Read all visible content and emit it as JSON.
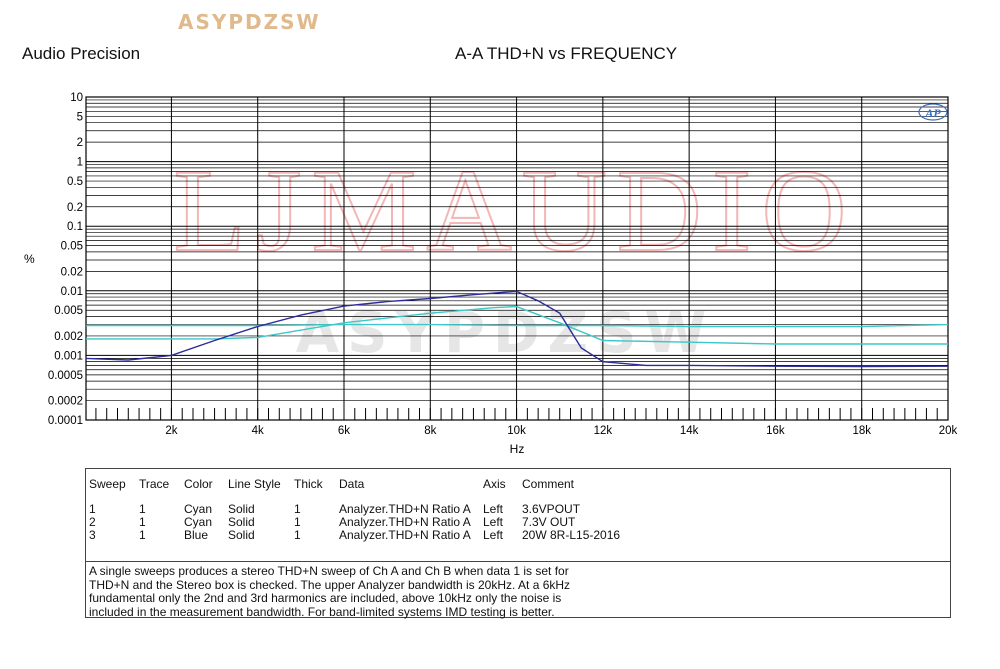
{
  "header": {
    "logo": "ASYPDZSW",
    "brand": "Audio Precision",
    "title": "A-A THD+N vs FREQUENCY"
  },
  "watermark": {
    "main": "LJMAUDIO",
    "secondary": "ASYPDZSW"
  },
  "ap_badge": "AP",
  "colors": {
    "cyan": "#3cc8c8",
    "blue": "#2c2c9c",
    "grid": "#000000",
    "watermark": "#f3b7b7"
  },
  "chart_data": {
    "type": "line",
    "title": "A-A THD+N vs FREQUENCY",
    "xlabel": "Hz",
    "ylabel": "%",
    "xlim": [
      20,
      20000
    ],
    "ylim": [
      0.0001,
      10
    ],
    "yscale": "log",
    "grid": true,
    "x_ticks": [
      "2k",
      "4k",
      "6k",
      "8k",
      "10k",
      "12k",
      "14k",
      "16k",
      "18k",
      "20k"
    ],
    "y_ticks": [
      "10",
      "5",
      "2",
      "1",
      "0.5",
      "0.2",
      "0.1",
      "0.05",
      "0.02",
      "0.01",
      "0.005",
      "0.002",
      "0.001",
      "0.0005",
      "0.0002",
      "0.0001"
    ],
    "series": [
      {
        "name": "3.6VPOUT",
        "color": "#3cc8c8",
        "x": [
          20,
          2000,
          4000,
          6000,
          8000,
          10000,
          10500,
          12000,
          14000,
          16000,
          18000,
          20000
        ],
        "y": [
          0.0029,
          0.0029,
          0.0029,
          0.003,
          0.003,
          0.0029,
          0.0029,
          0.0029,
          0.0028,
          0.0028,
          0.0028,
          0.003
        ]
      },
      {
        "name": "7.3V OUT",
        "color": "#3cc8c8",
        "x": [
          20,
          2000,
          3000,
          4000,
          6000,
          8000,
          9500,
          10000,
          11000,
          12000,
          14000,
          16000,
          18000,
          20000
        ],
        "y": [
          0.0018,
          0.0018,
          0.0018,
          0.0019,
          0.0032,
          0.0045,
          0.0055,
          0.0057,
          0.0032,
          0.0017,
          0.0016,
          0.0015,
          0.0015,
          0.0015
        ]
      },
      {
        "name": "20W 8R-L15-2016",
        "color": "#2c2c9c",
        "x": [
          20,
          1000,
          2000,
          3000,
          4000,
          5000,
          6000,
          7000,
          8000,
          9000,
          10000,
          10500,
          11000,
          11500,
          12000,
          13000,
          14000,
          16000,
          18000,
          20000
        ],
        "y": [
          0.0009,
          0.00085,
          0.001,
          0.0017,
          0.0028,
          0.0042,
          0.0058,
          0.0068,
          0.0076,
          0.0087,
          0.0098,
          0.007,
          0.0045,
          0.0013,
          0.0008,
          0.0007,
          0.0007,
          0.00068,
          0.00067,
          0.00068
        ]
      }
    ]
  },
  "legend": {
    "headers": [
      "Sweep",
      "Trace",
      "Color",
      "Line Style",
      "Thick",
      "Data",
      "Axis",
      "Comment"
    ],
    "rows": [
      [
        "1",
        "1",
        "Cyan",
        "Solid",
        "1",
        "Analyzer.THD+N Ratio A",
        "Left",
        "3.6VPOUT"
      ],
      [
        "2",
        "1",
        "Cyan",
        "Solid",
        "1",
        "Analyzer.THD+N Ratio A",
        "Left",
        "7.3V OUT"
      ],
      [
        "3",
        "1",
        "Blue",
        "Solid",
        "1",
        "Analyzer.THD+N Ratio A",
        "Left",
        "20W 8R-L15-2016"
      ]
    ]
  },
  "notes": [
    "A single sweeps produces a stereo THD+N sweep of Ch A and Ch B when data 1 is set for",
    "THD+N and the Stereo box is checked.  The upper Analyzer bandwidth is 20kHz.  At a 6kHz",
    "fundamental only the 2nd and 3rd harmonics are included, above 10kHz only the noise is",
    "included in the measurement bandwidth.  For band-limited systems IMD testing is better."
  ]
}
